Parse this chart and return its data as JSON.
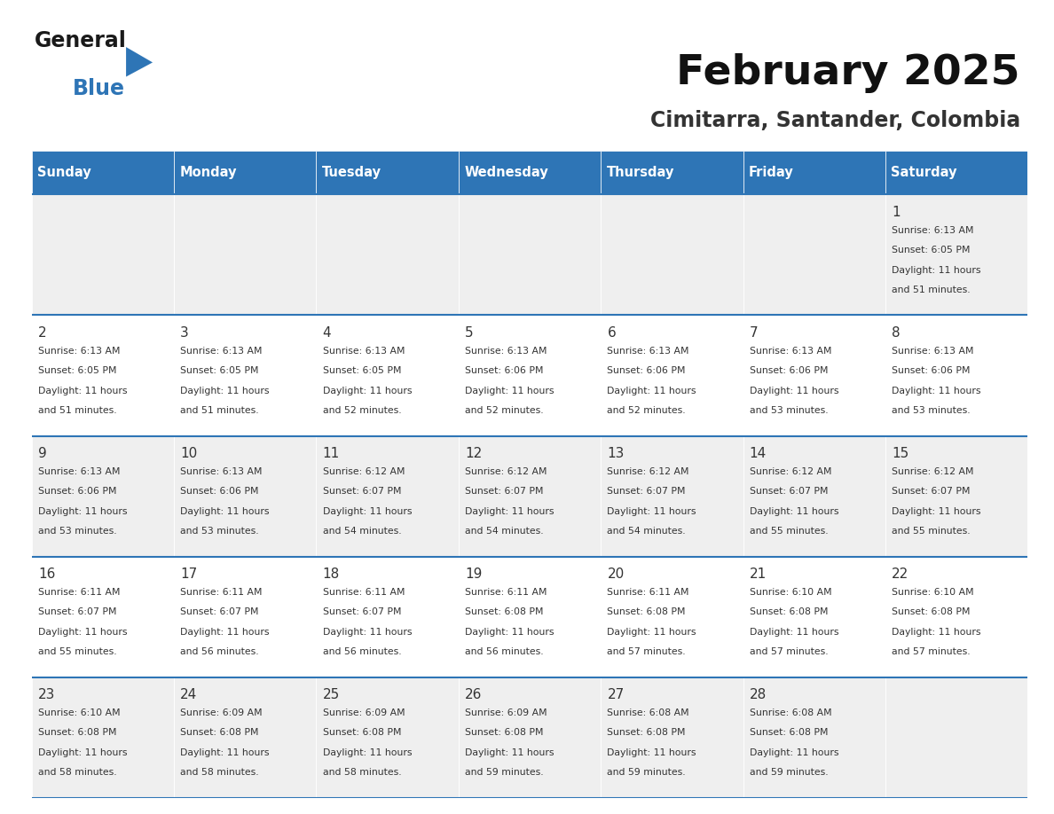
{
  "title": "February 2025",
  "subtitle": "Cimitarra, Santander, Colombia",
  "header_bg": "#2E75B6",
  "header_text_color": "#FFFFFF",
  "day_names": [
    "Sunday",
    "Monday",
    "Tuesday",
    "Wednesday",
    "Thursday",
    "Friday",
    "Saturday"
  ],
  "cell_bg_even": "#EFEFEF",
  "cell_bg_odd": "#FFFFFF",
  "cell_border_color": "#2E75B6",
  "day_num_color": "#333333",
  "info_text_color": "#333333",
  "calendar": [
    [
      null,
      null,
      null,
      null,
      null,
      null,
      {
        "day": 1,
        "sunrise": "6:13 AM",
        "sunset": "6:05 PM",
        "daylight": "11 hours\nand 51 minutes."
      }
    ],
    [
      {
        "day": 2,
        "sunrise": "6:13 AM",
        "sunset": "6:05 PM",
        "daylight": "11 hours\nand 51 minutes."
      },
      {
        "day": 3,
        "sunrise": "6:13 AM",
        "sunset": "6:05 PM",
        "daylight": "11 hours\nand 51 minutes."
      },
      {
        "day": 4,
        "sunrise": "6:13 AM",
        "sunset": "6:05 PM",
        "daylight": "11 hours\nand 52 minutes."
      },
      {
        "day": 5,
        "sunrise": "6:13 AM",
        "sunset": "6:06 PM",
        "daylight": "11 hours\nand 52 minutes."
      },
      {
        "day": 6,
        "sunrise": "6:13 AM",
        "sunset": "6:06 PM",
        "daylight": "11 hours\nand 52 minutes."
      },
      {
        "day": 7,
        "sunrise": "6:13 AM",
        "sunset": "6:06 PM",
        "daylight": "11 hours\nand 53 minutes."
      },
      {
        "day": 8,
        "sunrise": "6:13 AM",
        "sunset": "6:06 PM",
        "daylight": "11 hours\nand 53 minutes."
      }
    ],
    [
      {
        "day": 9,
        "sunrise": "6:13 AM",
        "sunset": "6:06 PM",
        "daylight": "11 hours\nand 53 minutes."
      },
      {
        "day": 10,
        "sunrise": "6:13 AM",
        "sunset": "6:06 PM",
        "daylight": "11 hours\nand 53 minutes."
      },
      {
        "day": 11,
        "sunrise": "6:12 AM",
        "sunset": "6:07 PM",
        "daylight": "11 hours\nand 54 minutes."
      },
      {
        "day": 12,
        "sunrise": "6:12 AM",
        "sunset": "6:07 PM",
        "daylight": "11 hours\nand 54 minutes."
      },
      {
        "day": 13,
        "sunrise": "6:12 AM",
        "sunset": "6:07 PM",
        "daylight": "11 hours\nand 54 minutes."
      },
      {
        "day": 14,
        "sunrise": "6:12 AM",
        "sunset": "6:07 PM",
        "daylight": "11 hours\nand 55 minutes."
      },
      {
        "day": 15,
        "sunrise": "6:12 AM",
        "sunset": "6:07 PM",
        "daylight": "11 hours\nand 55 minutes."
      }
    ],
    [
      {
        "day": 16,
        "sunrise": "6:11 AM",
        "sunset": "6:07 PM",
        "daylight": "11 hours\nand 55 minutes."
      },
      {
        "day": 17,
        "sunrise": "6:11 AM",
        "sunset": "6:07 PM",
        "daylight": "11 hours\nand 56 minutes."
      },
      {
        "day": 18,
        "sunrise": "6:11 AM",
        "sunset": "6:07 PM",
        "daylight": "11 hours\nand 56 minutes."
      },
      {
        "day": 19,
        "sunrise": "6:11 AM",
        "sunset": "6:08 PM",
        "daylight": "11 hours\nand 56 minutes."
      },
      {
        "day": 20,
        "sunrise": "6:11 AM",
        "sunset": "6:08 PM",
        "daylight": "11 hours\nand 57 minutes."
      },
      {
        "day": 21,
        "sunrise": "6:10 AM",
        "sunset": "6:08 PM",
        "daylight": "11 hours\nand 57 minutes."
      },
      {
        "day": 22,
        "sunrise": "6:10 AM",
        "sunset": "6:08 PM",
        "daylight": "11 hours\nand 57 minutes."
      }
    ],
    [
      {
        "day": 23,
        "sunrise": "6:10 AM",
        "sunset": "6:08 PM",
        "daylight": "11 hours\nand 58 minutes."
      },
      {
        "day": 24,
        "sunrise": "6:09 AM",
        "sunset": "6:08 PM",
        "daylight": "11 hours\nand 58 minutes."
      },
      {
        "day": 25,
        "sunrise": "6:09 AM",
        "sunset": "6:08 PM",
        "daylight": "11 hours\nand 58 minutes."
      },
      {
        "day": 26,
        "sunrise": "6:09 AM",
        "sunset": "6:08 PM",
        "daylight": "11 hours\nand 59 minutes."
      },
      {
        "day": 27,
        "sunrise": "6:08 AM",
        "sunset": "6:08 PM",
        "daylight": "11 hours\nand 59 minutes."
      },
      {
        "day": 28,
        "sunrise": "6:08 AM",
        "sunset": "6:08 PM",
        "daylight": "11 hours\nand 59 minutes."
      },
      null
    ]
  ],
  "logo_general_color": "#1a1a1a",
  "logo_blue_color": "#2E75B6",
  "fig_width": 11.88,
  "fig_height": 9.18,
  "dpi": 100
}
